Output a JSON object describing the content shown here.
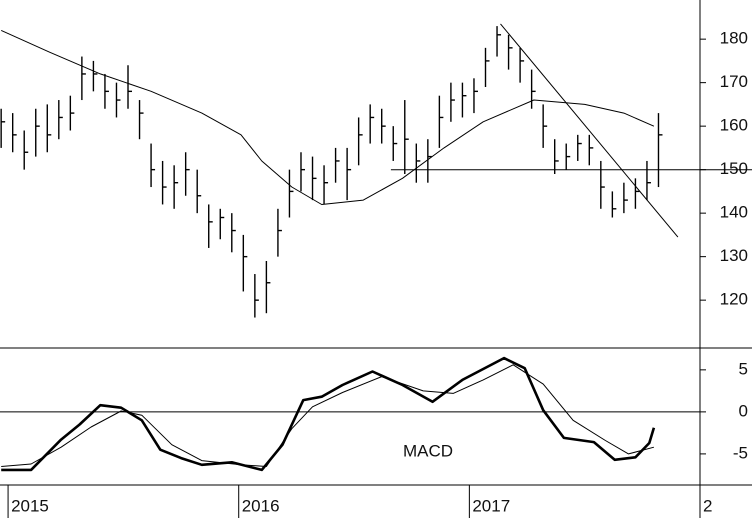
{
  "chart_data": [
    {
      "type": "ohlc",
      "xlim": [
        2014.965,
        2018.0
      ],
      "ylim": [
        109,
        189
      ],
      "yticks": [
        120,
        130,
        140,
        150,
        160,
        170,
        180
      ],
      "x": [
        2014.97,
        2015.02,
        2015.07,
        2015.12,
        2015.17,
        2015.22,
        2015.27,
        2015.32,
        2015.37,
        2015.42,
        2015.47,
        2015.52,
        2015.57,
        2015.62,
        2015.67,
        2015.72,
        2015.77,
        2015.82,
        2015.87,
        2015.92,
        2015.97,
        2016.02,
        2016.07,
        2016.12,
        2016.17,
        2016.22,
        2016.27,
        2016.32,
        2016.37,
        2016.42,
        2016.47,
        2016.52,
        2016.57,
        2016.62,
        2016.67,
        2016.72,
        2016.77,
        2016.82,
        2016.87,
        2016.92,
        2016.97,
        2017.02,
        2017.07,
        2017.12,
        2017.17,
        2017.22,
        2017.27,
        2017.32,
        2017.37,
        2017.42,
        2017.47,
        2017.52,
        2017.57,
        2017.62,
        2017.67,
        2017.72,
        2017.77,
        2017.82
      ],
      "high": [
        164,
        163,
        159,
        164,
        165,
        166,
        167,
        176,
        175,
        172,
        170,
        174,
        166,
        156,
        152,
        151,
        154,
        150,
        142,
        141,
        140,
        135,
        126,
        129,
        141,
        150,
        154,
        153,
        151,
        155,
        155,
        162,
        165,
        164,
        160,
        166,
        156,
        157,
        167,
        170,
        170,
        171,
        178,
        183,
        181,
        178,
        173,
        165,
        157,
        156,
        158,
        158,
        152,
        145,
        147,
        148,
        152,
        163
      ],
      "low": [
        155,
        154,
        150,
        153,
        154,
        157,
        159,
        166,
        168,
        164,
        162,
        164,
        157,
        146,
        142,
        141,
        144,
        140,
        132,
        134,
        131,
        122,
        116,
        117,
        130,
        139,
        145,
        143,
        142,
        147,
        143,
        151,
        156,
        156,
        152,
        149,
        147,
        147,
        155,
        161,
        162,
        163,
        169,
        176,
        173,
        170,
        164,
        155,
        149,
        150,
        152,
        151,
        141,
        139,
        140,
        141,
        143,
        146
      ],
      "close": [
        161,
        158,
        154,
        160,
        158,
        162,
        163,
        172,
        172,
        168,
        166,
        168,
        163,
        150,
        146,
        147,
        150,
        144,
        138,
        139,
        136,
        130,
        120,
        124,
        136,
        145,
        150,
        148,
        147,
        152,
        150,
        158,
        162,
        160,
        156,
        157,
        152,
        153,
        162,
        166,
        167,
        168,
        175,
        181,
        178,
        175,
        168,
        160,
        152,
        153,
        156,
        155,
        146,
        141,
        143,
        145,
        147,
        158
      ],
      "overlays": [
        {
          "x": [
            2014.97,
            2015.18,
            2015.4,
            2015.62,
            2015.84,
            2016.01,
            2016.1,
            2016.23,
            2016.36,
            2016.54,
            2016.71,
            2016.89,
            2017.06,
            2017.28,
            2017.5,
            2017.67,
            2017.8
          ],
          "values": [
            182,
            177,
            172,
            168,
            163,
            158,
            152,
            146,
            142,
            143,
            148,
            155,
            161,
            166,
            165,
            163,
            160
          ]
        }
      ],
      "trendlines": [
        {
          "x": [
            2016.66,
            2018.227
          ],
          "values": [
            150,
            150
          ]
        },
        {
          "x": [
            2017.135,
            2017.904
          ],
          "values": [
            183.5,
            134.5
          ]
        }
      ]
    },
    {
      "type": "line",
      "annotation": "MACD",
      "xlim": [
        2014.965,
        2018.0
      ],
      "ylim": [
        -8.7,
        7.6
      ],
      "yticks": [
        5,
        0,
        -5
      ],
      "zero_line": true,
      "xticks": [
        2015,
        2016,
        2017,
        {
          "value": 2018,
          "label": "2"
        }
      ],
      "series": [
        {
          "width": 2.6,
          "x": [
            2014.97,
            2015.1,
            2015.23,
            2015.31,
            2015.4,
            2015.49,
            2015.58,
            2015.66,
            2015.75,
            2015.84,
            2015.97,
            2016.1,
            2016.19,
            2016.28,
            2016.36,
            2016.45,
            2016.58,
            2016.71,
            2016.84,
            2016.97,
            2017.15,
            2017.24,
            2017.32,
            2017.41,
            2017.54,
            2017.63,
            2017.72,
            2017.78,
            2017.8
          ],
          "values": [
            -6.9,
            -6.9,
            -3.3,
            -1.5,
            0.8,
            0.5,
            -1,
            -4.5,
            -5.5,
            -6.3,
            -6,
            -6.9,
            -3.9,
            1.4,
            1.8,
            3.2,
            4.8,
            3.2,
            1.2,
            3.8,
            6.4,
            5.2,
            0.2,
            -3.1,
            -3.6,
            -5.7,
            -5.4,
            -3.7,
            -1.9
          ]
        },
        {
          "width": 1,
          "x": [
            2014.97,
            2015.1,
            2015.23,
            2015.36,
            2015.49,
            2015.58,
            2015.71,
            2015.84,
            2016.01,
            2016.12,
            2016.23,
            2016.32,
            2016.45,
            2016.62,
            2016.8,
            2016.93,
            2017.06,
            2017.19,
            2017.32,
            2017.45,
            2017.59,
            2017.69,
            2017.8
          ],
          "values": [
            -6.5,
            -6.2,
            -4.2,
            -1.8,
            0.1,
            -0.4,
            -3.9,
            -5.8,
            -6.3,
            -6.5,
            -2,
            0.6,
            2.3,
            4.2,
            2.5,
            2.2,
            3.8,
            5.6,
            3.3,
            -1,
            -3.4,
            -5,
            -4.2
          ]
        }
      ]
    }
  ]
}
